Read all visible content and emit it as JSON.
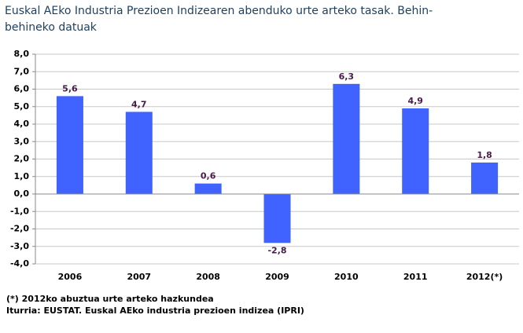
{
  "chart_data": {
    "type": "bar",
    "title": [
      "Euskal AEko Industria Prezioen Indizearen abenduko urte arteko tasak.  Behin-",
      "behineko datuak"
    ],
    "categories": [
      "2006",
      "2007",
      "2008",
      "2009",
      "2010",
      "2011",
      "2012(*)"
    ],
    "values": [
      5.6,
      4.7,
      0.6,
      -2.8,
      6.3,
      4.9,
      1.8
    ],
    "value_labels": [
      "5,6",
      "4,7",
      "0,6",
      "-2,8",
      "6,3",
      "4,9",
      "1,8"
    ],
    "color": "#4062ff",
    "ylim": [
      -4,
      8
    ],
    "yticks": [
      {
        "value": -4,
        "label": "-4,0"
      },
      {
        "value": -3,
        "label": "-3,0"
      },
      {
        "value": -2,
        "label": "-2,0"
      },
      {
        "value": -1,
        "label": "-1,0"
      },
      {
        "value": 0,
        "label": "0,0"
      },
      {
        "value": 1,
        "label": "1,0"
      },
      {
        "value": 2,
        "label": "2,0"
      },
      {
        "value": 3,
        "label": "3,0"
      },
      {
        "value": 4,
        "label": "4,0"
      },
      {
        "value": 5,
        "label": "5,0"
      },
      {
        "value": 6,
        "label": "6,0"
      },
      {
        "value": 7,
        "label": "7,0"
      },
      {
        "value": 8,
        "label": "8,0"
      }
    ],
    "grid": true,
    "notes": [
      "(*) 2012ko abuztua urte arteko hazkundea",
      "Iturria: EUSTAT. Euskal AEko industria prezioen indizea (IPRI)"
    ]
  }
}
